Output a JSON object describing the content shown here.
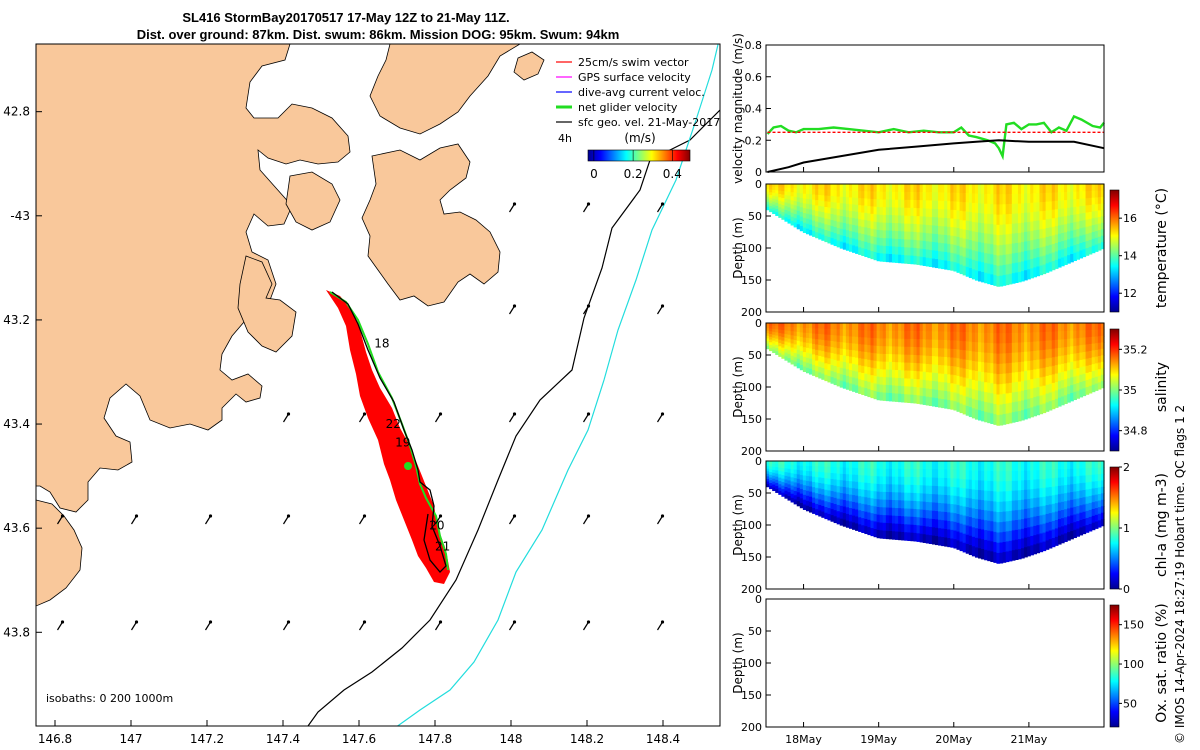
{
  "title": {
    "line1": "SL416 StormBay20170517 17-May 12Z to 21-May 11Z.",
    "line2": "Dist. over ground: 87km. Dist. swum: 86km. Mission DOG: 95km. Swum: 94km"
  },
  "colors": {
    "land": "#f9c89b",
    "track": "#ff0000",
    "net_velocity": "#22dd22",
    "contour_200": "#000000",
    "contour_1000": "#22dddd",
    "swim_vector": "#ff0000",
    "gps_velocity": "#ff00ff",
    "dive_avg": "#0000ff",
    "geo_vel": "#000000"
  },
  "map": {
    "lon_ticks": [
      "146.8",
      "147",
      "147.2",
      "147.4",
      "147.6",
      "147.8",
      "148",
      "148.2",
      "148.4"
    ],
    "lat_ticks": [
      "42.8",
      "-43",
      "43.2",
      "43.4",
      "43.6",
      "43.8"
    ],
    "lon_range": [
      146.75,
      148.55
    ],
    "lat_range": [
      42.67,
      43.98
    ],
    "legend": [
      {
        "label": "25cm/s swim vector",
        "color": "#ff0000"
      },
      {
        "label": "GPS surface velocity",
        "color": "#ff00ff"
      },
      {
        "label": "dive-avg current veloc.",
        "color": "#0000ff"
      },
      {
        "label": "net glider velocity",
        "color": "#22dd22"
      },
      {
        "label": "sfc geo. vel. 21-May-2017",
        "color": "#000000"
      }
    ],
    "legend_extra": "4h",
    "colorbar_label": "(m/s)",
    "colorbar_ticks": [
      "0",
      "0.2",
      "0.4"
    ],
    "day_labels": [
      {
        "text": "18",
        "lon": 147.64,
        "lat": 43.253
      },
      {
        "text": "22",
        "lon": 147.67,
        "lat": 43.408
      },
      {
        "text": "19",
        "lon": 147.695,
        "lat": 43.443
      },
      {
        "text": "20",
        "lon": 147.785,
        "lat": 43.603
      },
      {
        "text": "21",
        "lon": 147.8,
        "lat": 43.643
      }
    ],
    "isobaths_text": "isobaths: 0   200  1000m"
  },
  "chart_data": [
    {
      "type": "line",
      "panel": "velocity",
      "ylabel": "velocity magnitude (m/s)",
      "yticks": [
        "0",
        "0.2",
        "0.4",
        "0.6",
        "0.8"
      ],
      "ylim": [
        0,
        0.8
      ],
      "xlim": [
        17.5,
        22
      ],
      "series": [
        {
          "color": "#22dd22",
          "x": [
            17.52,
            17.6,
            17.7,
            17.8,
            17.9,
            18.0,
            18.2,
            18.4,
            18.6,
            18.8,
            19.0,
            19.2,
            19.4,
            19.6,
            19.8,
            20.0,
            20.1,
            20.2,
            20.3,
            20.45,
            20.55,
            20.6,
            20.65,
            20.7,
            20.8,
            20.9,
            21.0,
            21.1,
            21.2,
            21.3,
            21.4,
            21.5,
            21.6,
            21.7,
            21.85,
            21.95,
            22.0
          ],
          "y": [
            0.24,
            0.28,
            0.29,
            0.26,
            0.25,
            0.27,
            0.27,
            0.28,
            0.27,
            0.26,
            0.25,
            0.27,
            0.25,
            0.26,
            0.25,
            0.25,
            0.28,
            0.23,
            0.22,
            0.2,
            0.18,
            0.15,
            0.1,
            0.3,
            0.31,
            0.27,
            0.3,
            0.3,
            0.31,
            0.25,
            0.28,
            0.26,
            0.35,
            0.33,
            0.29,
            0.28,
            0.31
          ]
        },
        {
          "color": "#000000",
          "x": [
            17.52,
            17.8,
            18.0,
            18.5,
            19.0,
            19.5,
            20.0,
            20.3,
            20.6,
            21.0,
            21.3,
            21.6,
            22.0
          ],
          "y": [
            0.0,
            0.03,
            0.06,
            0.1,
            0.14,
            0.16,
            0.18,
            0.19,
            0.2,
            0.19,
            0.19,
            0.19,
            0.15
          ]
        },
        {
          "color": "#ff0000",
          "x": [
            17.52,
            22.0
          ],
          "y": [
            0.25,
            0.25
          ]
        }
      ]
    },
    {
      "type": "heatmap",
      "panel": "temperature",
      "ylabel": "Depth (m)",
      "yticks": [
        "0",
        "50",
        "100",
        "150",
        "200"
      ],
      "ylim": [
        0,
        200
      ],
      "colorbar_label": "temperature (°C)",
      "colorbar_ticks": [
        "12",
        "14",
        "16"
      ],
      "clim": [
        11,
        17.5
      ],
      "bottom_depth": {
        "x": [
          17.52,
          18.0,
          18.5,
          19.0,
          19.5,
          20.0,
          20.3,
          20.6,
          20.9,
          21.2,
          21.5,
          21.8,
          22.0
        ],
        "y": [
          40,
          75,
          100,
          120,
          125,
          135,
          150,
          160,
          152,
          140,
          125,
          110,
          100
        ]
      },
      "shallow_value": 15.2,
      "deep_value": 13.5
    },
    {
      "type": "heatmap",
      "panel": "salinity",
      "ylabel": "Depth (m)",
      "yticks": [
        "0",
        "50",
        "100",
        "150",
        "200"
      ],
      "ylim": [
        0,
        200
      ],
      "colorbar_label": "salinity",
      "colorbar_ticks": [
        "34.8",
        "35",
        "35.2"
      ],
      "clim": [
        34.7,
        35.3
      ],
      "bottom_depth": {
        "x": [
          17.52,
          18.0,
          18.5,
          19.0,
          19.5,
          20.0,
          20.3,
          20.6,
          20.9,
          21.2,
          21.5,
          21.8,
          22.0
        ],
        "y": [
          40,
          75,
          100,
          120,
          125,
          135,
          150,
          160,
          152,
          140,
          125,
          110,
          100
        ]
      },
      "shallow_value": 35.15,
      "deep_value": 35.0
    },
    {
      "type": "heatmap",
      "panel": "chl-a",
      "ylabel": "Depth (m)",
      "yticks": [
        "0",
        "50",
        "100",
        "150",
        "200"
      ],
      "ylim": [
        0,
        200
      ],
      "colorbar_label": "chl-a (mg m-3)",
      "colorbar_ticks": [
        "0",
        "1",
        "2"
      ],
      "clim": [
        0,
        2
      ],
      "bottom_depth": {
        "x": [
          17.52,
          18.0,
          18.5,
          19.0,
          19.5,
          20.0,
          20.3,
          20.6,
          20.9,
          21.2,
          21.5,
          21.8,
          22.0
        ],
        "y": [
          40,
          75,
          100,
          120,
          125,
          135,
          150,
          160,
          152,
          140,
          125,
          110,
          100
        ]
      },
      "shallow_value": 0.8,
      "deep_value": 0.1
    },
    {
      "type": "heatmap",
      "panel": "oxygen",
      "ylabel": "Depth (m)",
      "yticks": [
        "0",
        "50",
        "100",
        "150",
        "200"
      ],
      "ylim": [
        0,
        200
      ],
      "colorbar_label": "Ox. sat. ratio (%)",
      "colorbar_ticks": [
        "50",
        "100",
        "150"
      ],
      "clim": [
        20,
        175
      ],
      "xticks": [
        "18May",
        "19May",
        "20May",
        "21May"
      ]
    }
  ],
  "footer": "© IMOS 14-Apr-2024 18:27:19 Hobart time. QC flags 1  2"
}
